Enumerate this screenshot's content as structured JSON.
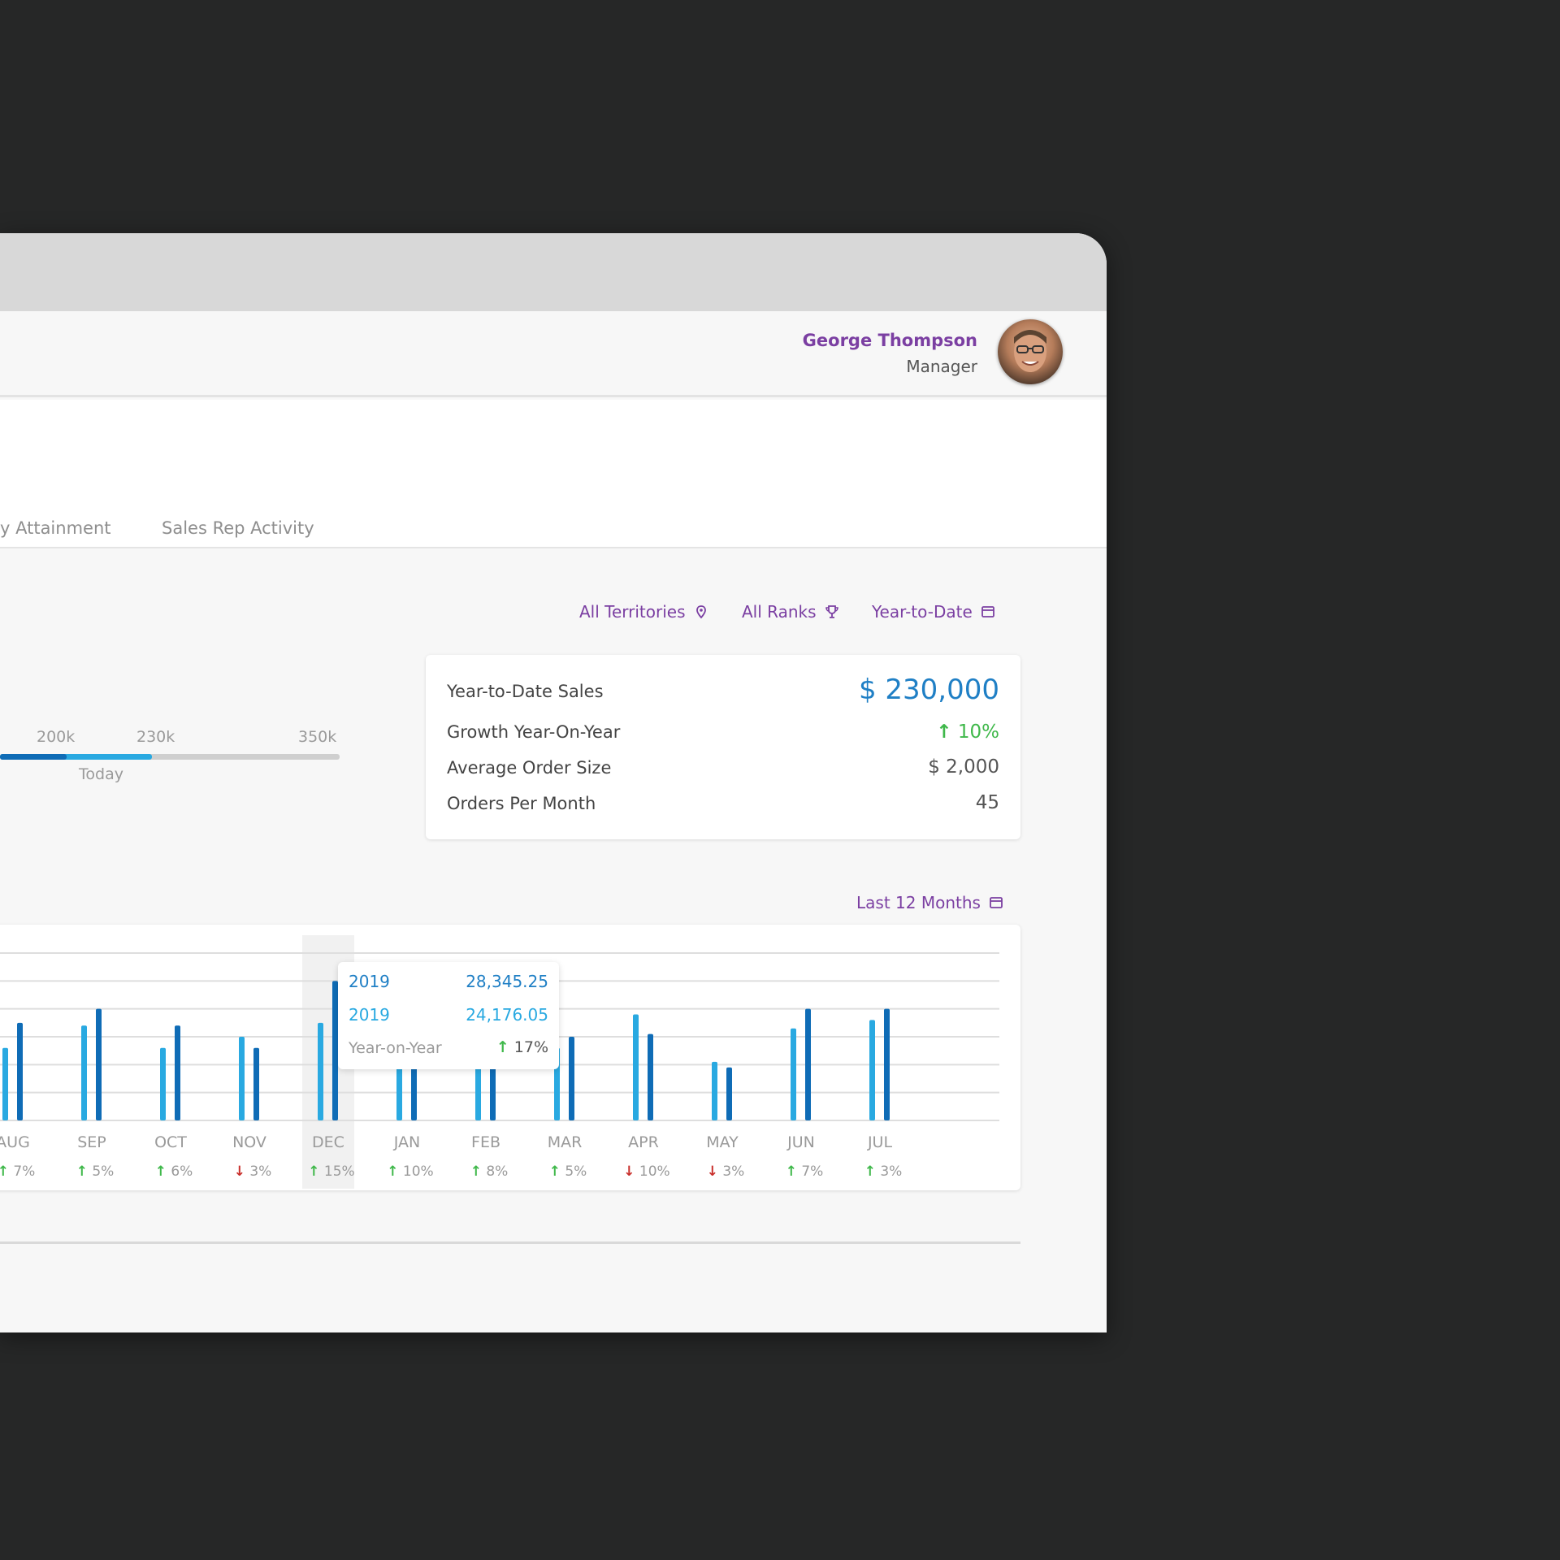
{
  "header": {
    "user_name": "George Thompson",
    "user_role": "Manager"
  },
  "tabs": [
    {
      "label": "y Attainment"
    },
    {
      "label": "Sales Rep Activity"
    }
  ],
  "filters": {
    "territories": "All Territories",
    "ranks": "All Ranks",
    "period": "Year-to-Date",
    "chart_period": "Last 12 Months"
  },
  "progress": {
    "labels": [
      "200k",
      "230k",
      "350k"
    ],
    "today_label": "Today",
    "current": 230,
    "max": 350
  },
  "stats": {
    "ytd_sales_label": "Year-to-Date Sales",
    "ytd_sales_value": "$ 230,000",
    "growth_label": "Growth Year-On-Year",
    "growth_value": "10%",
    "avg_order_label": "Average Order Size",
    "avg_order_value": "$ 2,000",
    "orders_label": "Orders Per Month",
    "orders_value": "45"
  },
  "tooltip": {
    "row1_label": "2019",
    "row1_value": "28,345.25",
    "row2_label": "2019",
    "row2_value": "24,176.05",
    "row3_label": "Year-on-Year",
    "row3_value": "17%"
  },
  "colors": {
    "accent_purple": "#7b3fa2",
    "bar_light": "#29a9e1",
    "bar_dark": "#0f6cb6",
    "up": "#3fb84a",
    "down": "#c9302c"
  },
  "chart_data": {
    "type": "bar",
    "categories": [
      "AUG",
      "SEP",
      "OCT",
      "NOV",
      "DEC",
      "JAN",
      "FEB",
      "MAR",
      "APR",
      "MAY",
      "JUN",
      "JUL"
    ],
    "series": [
      {
        "values": [
          26,
          34,
          26,
          30,
          35,
          20,
          20,
          26,
          38,
          21,
          33,
          36
        ]
      },
      {
        "values": [
          35,
          40,
          34,
          26,
          50,
          20,
          20,
          30,
          31,
          19,
          40,
          40
        ]
      }
    ],
    "changes": [
      {
        "dir": "up",
        "pct": "7%"
      },
      {
        "dir": "up",
        "pct": "5%"
      },
      {
        "dir": "up",
        "pct": "6%"
      },
      {
        "dir": "down",
        "pct": "3%"
      },
      {
        "dir": "up",
        "pct": "15%"
      },
      {
        "dir": "up",
        "pct": "10%"
      },
      {
        "dir": "up",
        "pct": "8%"
      },
      {
        "dir": "up",
        "pct": "5%"
      },
      {
        "dir": "down",
        "pct": "10%"
      },
      {
        "dir": "down",
        "pct": "3%"
      },
      {
        "dir": "up",
        "pct": "7%"
      },
      {
        "dir": "up",
        "pct": "3%"
      }
    ],
    "highlighted": "DEC",
    "ylim": [
      0,
      60
    ],
    "grid": true
  }
}
